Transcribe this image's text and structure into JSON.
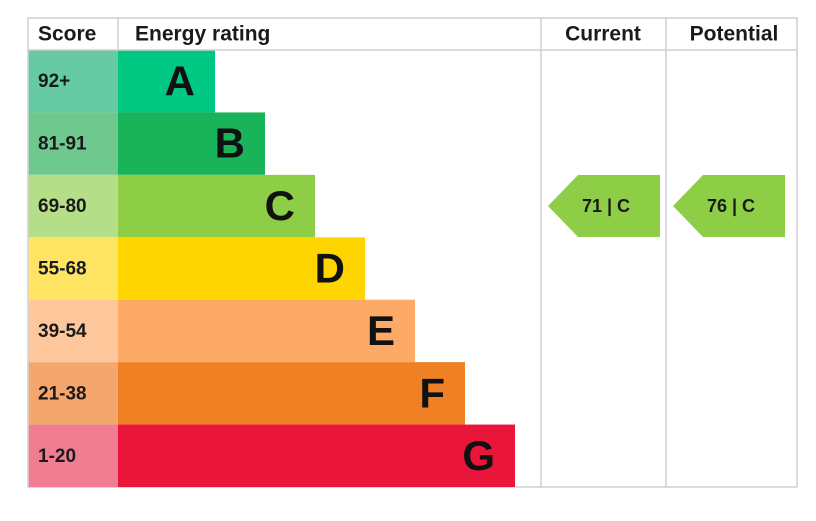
{
  "header": {
    "score": "Score",
    "rating": "Energy rating",
    "current": "Current",
    "potential": "Potential"
  },
  "bands": [
    {
      "score": "92+",
      "letter": "A"
    },
    {
      "score": "81-91",
      "letter": "B"
    },
    {
      "score": "69-80",
      "letter": "C"
    },
    {
      "score": "55-68",
      "letter": "D"
    },
    {
      "score": "39-54",
      "letter": "E"
    },
    {
      "score": "21-38",
      "letter": "F"
    },
    {
      "score": "1-20",
      "letter": "G"
    }
  ],
  "current": "71 | C",
  "potential": "76 | C"
}
